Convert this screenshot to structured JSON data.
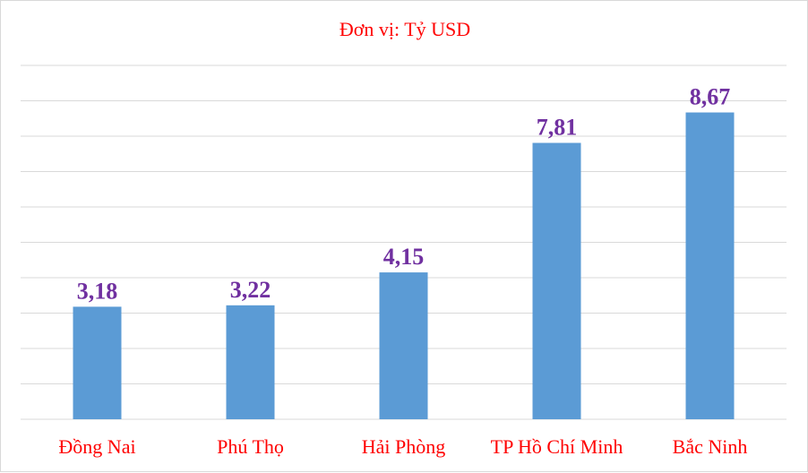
{
  "chart_data": {
    "type": "bar",
    "unit_label": "Đơn vị: Tỷ USD",
    "categories": [
      "Đồng Nai",
      "Phú Thọ",
      "Hải Phòng",
      "TP Hồ Chí Minh",
      "Bắc Ninh"
    ],
    "values": [
      3.18,
      3.22,
      4.15,
      7.81,
      8.67
    ],
    "value_labels": [
      "3,18",
      "3,22",
      "4,15",
      "7,81",
      "8,67"
    ],
    "ylim": [
      0,
      10
    ],
    "grid": true,
    "bar_color": "#5B9BD5",
    "label_color": "#7030A0",
    "category_color": "#FF0000",
    "unit_color": "#FF0000",
    "grid_color": "#d9d9d9"
  }
}
